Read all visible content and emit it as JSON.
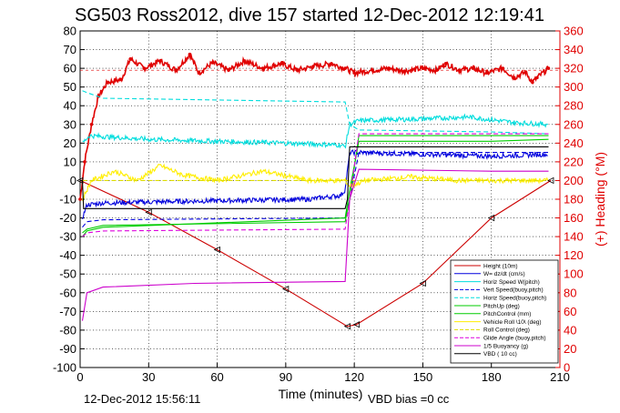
{
  "chart_data": {
    "type": "line",
    "title": "SG503 Ross2012, dive 157 started 12-Dec-2012 12:19:41",
    "xlabel": "Time (minutes)",
    "ylabel_right": "(+) Heading (°M)",
    "xlim": [
      0,
      210
    ],
    "ylim": [
      -100,
      80
    ],
    "ylim_right": [
      0,
      360
    ],
    "x_ticks": [
      "0",
      "30",
      "60",
      "90",
      "120",
      "150",
      "180",
      "210"
    ],
    "y_ticks": [
      "80",
      "70",
      "60",
      "50",
      "40",
      "30",
      "20",
      "10",
      "0",
      "-10",
      "-20",
      "-30",
      "-40",
      "-50",
      "-60",
      "-70",
      "-80",
      "-90",
      "-100"
    ],
    "y_ticks_right": [
      "360",
      "340",
      "320",
      "300",
      "280",
      "260",
      "240",
      "220",
      "200",
      "180",
      "160",
      "140",
      "120",
      "100",
      "80",
      "60",
      "40",
      "20",
      "0"
    ],
    "grid": true,
    "legend_position": "bottom-right",
    "footer_time": "12-Dec-2012 15:56:11",
    "footer_vbd": "VBD bias =0 cc",
    "series": [
      {
        "name": "Heading",
        "axis": "right",
        "color": "#e00000",
        "style": "line-markers",
        "x": [
          0,
          2,
          5,
          8,
          12,
          18,
          22,
          28,
          35,
          42,
          48,
          52,
          58,
          65,
          72,
          80,
          88,
          95,
          102,
          110,
          116,
          120,
          128,
          135,
          142,
          150,
          156,
          160,
          166,
          172,
          178,
          185,
          190,
          195,
          198,
          200,
          205
        ],
        "values": [
          180,
          220,
          260,
          290,
          305,
          308,
          330,
          320,
          328,
          318,
          335,
          315,
          326,
          318,
          328,
          320,
          325,
          318,
          322,
          325,
          320,
          315,
          318,
          320,
          317,
          320,
          318,
          325,
          318,
          320,
          315,
          320,
          310,
          316,
          305,
          310,
          320
        ]
      },
      {
        "name": "Height (10m)",
        "axis": "left",
        "color": "#cc0000",
        "style": "line",
        "x": [
          0,
          30,
          60,
          90,
          117,
          121,
          150,
          180,
          206
        ],
        "values": [
          0,
          -17,
          -37,
          -58,
          -78,
          -77,
          -55,
          -20,
          0
        ]
      },
      {
        "name": "W= dz/dt (cm/s)",
        "axis": "left",
        "color": "#0000dd",
        "style": "noisy",
        "x": [
          1,
          3,
          10,
          50,
          100,
          114,
          116,
          118,
          122,
          150,
          180,
          205
        ],
        "values": [
          -20,
          -13,
          -12,
          -11,
          -10,
          -8,
          -5,
          15,
          15,
          14,
          13,
          14
        ]
      },
      {
        "name": "Horiz Speed W(pitch)",
        "axis": "left",
        "color": "#00dddd",
        "style": "noisy",
        "x": [
          1,
          4,
          30,
          60,
          90,
          114,
          116,
          118,
          122,
          150,
          170,
          190,
          205
        ],
        "values": [
          20,
          24,
          22,
          21,
          20,
          19,
          18,
          30,
          32,
          33,
          34,
          31,
          30
        ]
      },
      {
        "name": "Vert Speed(buoy,pitch)",
        "axis": "left",
        "color": "#0000dd",
        "style": "dashed",
        "x": [
          1,
          3,
          10,
          116,
          118,
          122,
          180,
          205
        ],
        "values": [
          -25,
          -22,
          -21,
          -20,
          -10,
          15,
          15,
          15
        ]
      },
      {
        "name": "Horiz Speed(buoy,pitch)",
        "axis": "left",
        "color": "#00dddd",
        "style": "dashed",
        "x": [
          1,
          3,
          10,
          116,
          118,
          122,
          180,
          205
        ],
        "values": [
          48,
          47,
          44,
          42,
          30,
          27,
          26,
          25
        ]
      },
      {
        "name": "PitchUp (deg)",
        "axis": "left",
        "color": "#00cc00",
        "style": "line",
        "x": [
          1,
          3,
          10,
          116,
          118,
          122,
          180,
          205
        ],
        "values": [
          -28,
          -26,
          -24,
          -22,
          -10,
          24,
          24,
          24
        ]
      },
      {
        "name": "PitchControl (mm)",
        "axis": "left",
        "color": "#00cc00",
        "style": "line",
        "x": [
          1,
          3,
          10,
          116,
          118,
          122,
          180,
          205
        ],
        "values": [
          -30,
          -27,
          -25,
          -20,
          -5,
          21,
          21,
          22
        ]
      },
      {
        "name": "Vehicle Roll \\10\\ (deg)",
        "axis": "left",
        "color": "#ffee00",
        "style": "noisy",
        "x": [
          1,
          5,
          15,
          25,
          35,
          45,
          60,
          80,
          100,
          116,
          118,
          125,
          145,
          165,
          185,
          205
        ],
        "values": [
          -10,
          0,
          5,
          0,
          8,
          3,
          0,
          5,
          0,
          0,
          -3,
          0,
          2,
          0,
          0,
          0
        ]
      },
      {
        "name": "Roll Control (deg)",
        "axis": "left",
        "color": "#dddd00",
        "style": "dashed",
        "x": [
          1,
          205
        ],
        "values": [
          0,
          0
        ]
      },
      {
        "name": "Glide Angle (buoy,pitch)",
        "axis": "left",
        "color": "#dd00dd",
        "style": "dashed",
        "x": [
          1,
          3,
          10,
          116,
          118,
          122,
          180,
          205
        ],
        "values": [
          -30,
          -28,
          -27,
          -26,
          -10,
          25,
          25,
          25
        ]
      },
      {
        "name": "1/5 Buoyancy (g)",
        "axis": "left",
        "color": "#cc00cc",
        "style": "line",
        "x": [
          1,
          3,
          10,
          50,
          116,
          118,
          122,
          180,
          205
        ],
        "values": [
          -75,
          -60,
          -57,
          -55,
          -54,
          -10,
          6,
          5,
          5
        ]
      },
      {
        "name": "VBD ( 10 cc)",
        "axis": "left",
        "color": "#000000",
        "style": "line",
        "x": [
          0,
          1,
          1.5,
          116,
          117,
          118,
          205
        ],
        "values": [
          0,
          0,
          -15,
          -15,
          -10,
          18,
          18
        ]
      }
    ]
  }
}
